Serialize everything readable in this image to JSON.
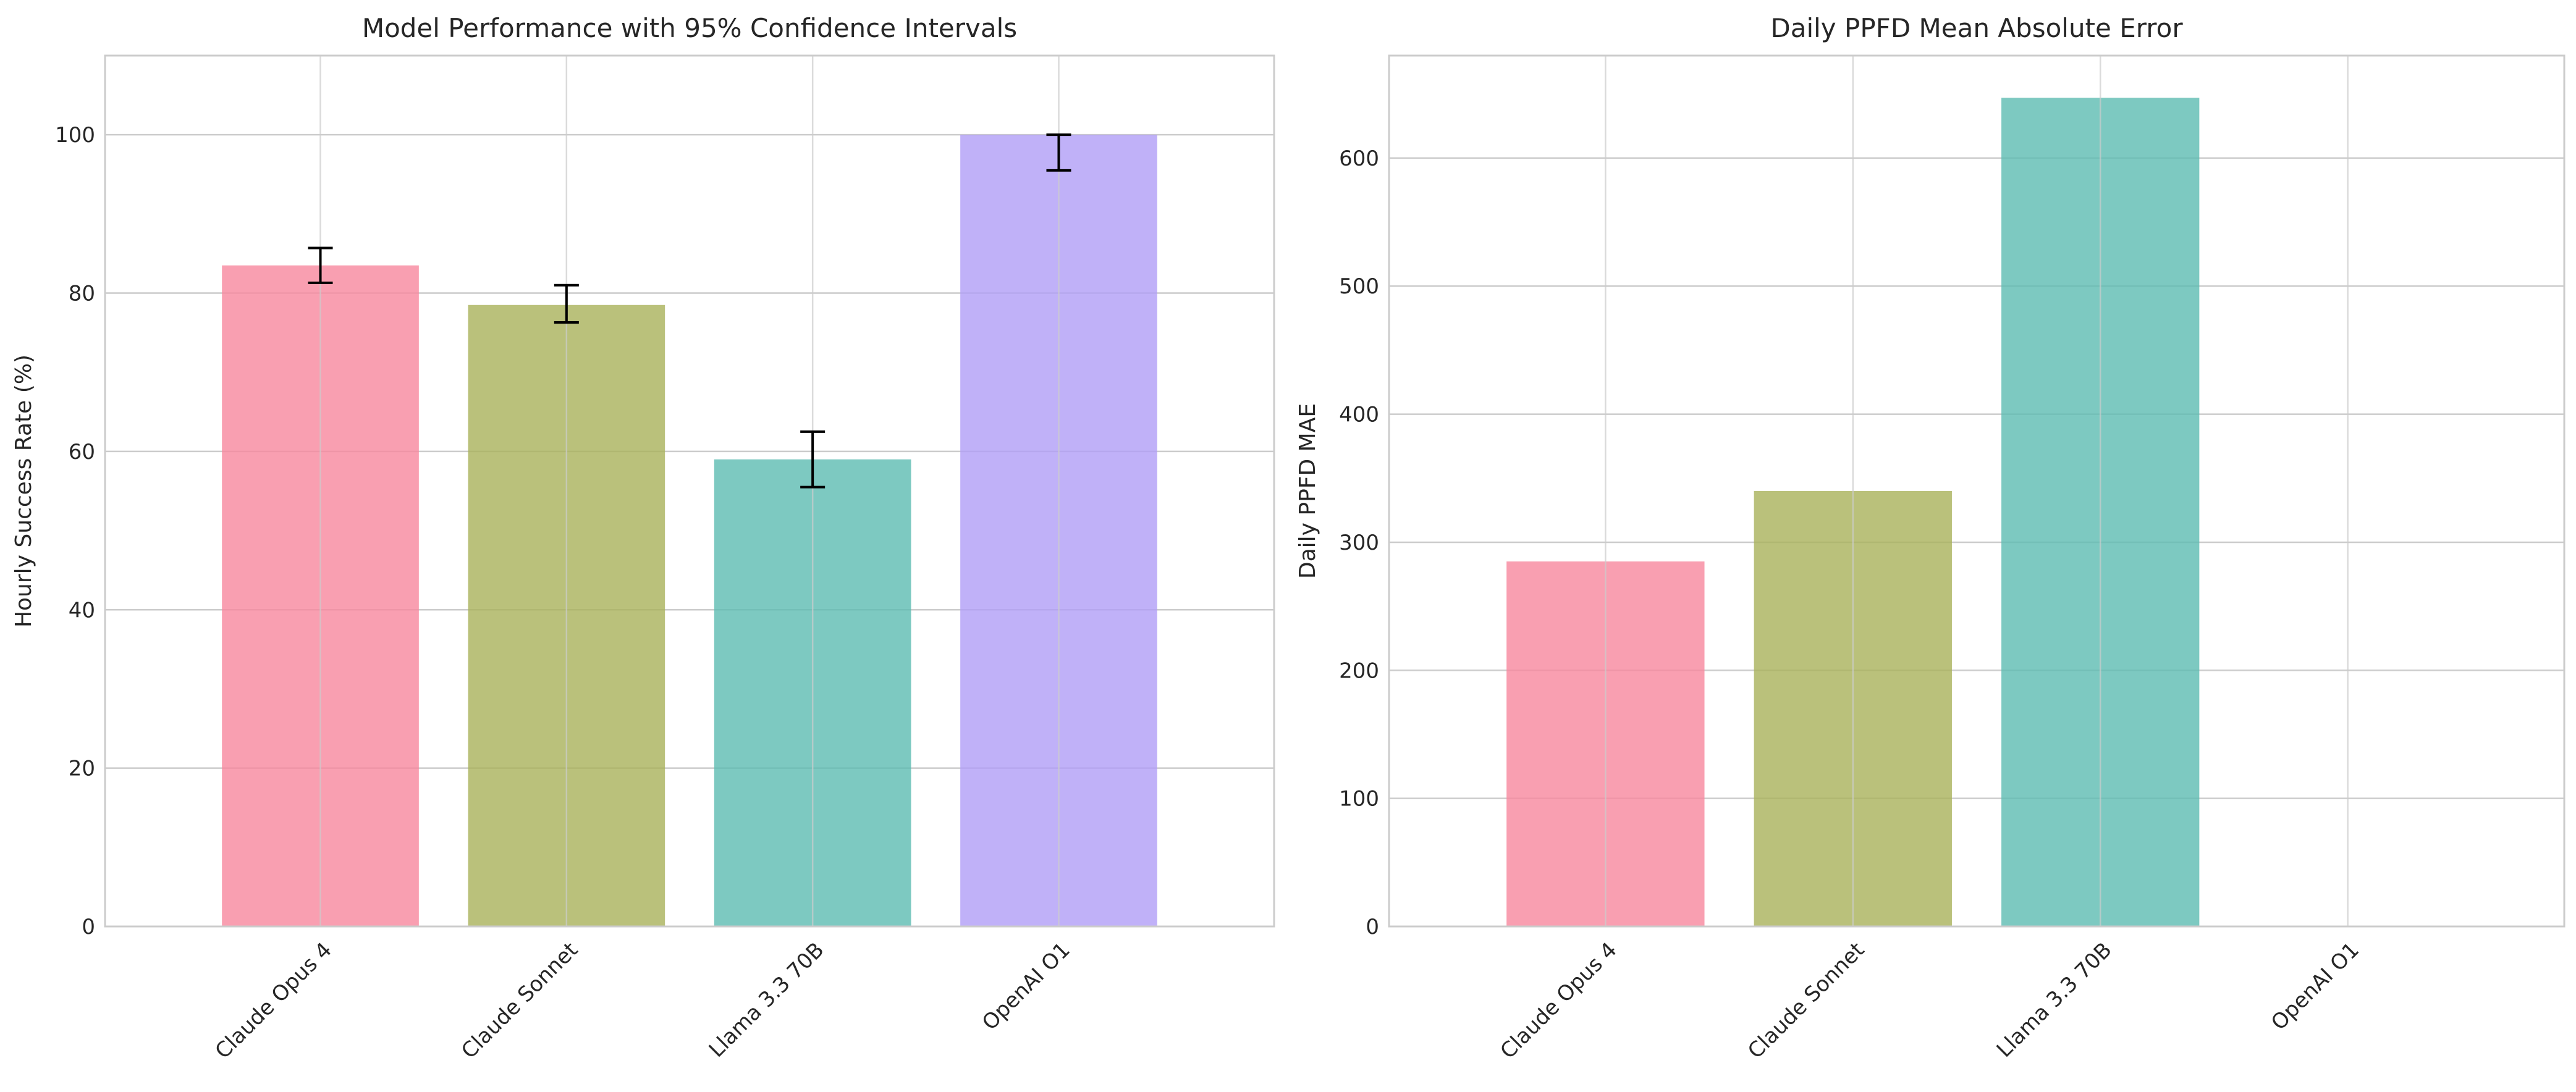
{
  "chart_data": [
    {
      "type": "bar",
      "title": "Model Performance with 95% Confidence Intervals",
      "xlabel": "",
      "ylabel": "Hourly Success Rate (%)",
      "categories": [
        "Claude Opus 4",
        "Claude Sonnet",
        "Llama 3.3 70B",
        "OpenAI O1"
      ],
      "values": [
        83.5,
        78.5,
        59.0,
        100.0
      ],
      "error_bars": [
        {
          "low": 81.3,
          "high": 85.7
        },
        {
          "low": 76.3,
          "high": 81.0
        },
        {
          "low": 55.5,
          "high": 62.5
        },
        {
          "low": 95.5,
          "high": 100.0
        }
      ],
      "colors": [
        "#f7879d",
        "#a9b25a",
        "#5cbbb2",
        "#b09ef6"
      ],
      "ylim": [
        0,
        110
      ],
      "yticks": [
        0,
        20,
        40,
        60,
        80,
        100
      ],
      "grid": true,
      "legend": "none"
    },
    {
      "type": "bar",
      "title": "Daily PPFD Mean Absolute Error",
      "xlabel": "",
      "ylabel": "Daily PPFD MAE",
      "categories": [
        "Claude Opus 4",
        "Claude Sonnet",
        "Llama 3.3 70B",
        "OpenAI O1"
      ],
      "values": [
        285,
        340,
        647,
        null
      ],
      "colors": [
        "#f7879d",
        "#a9b25a",
        "#5cbbb2",
        "#b09ef6"
      ],
      "ylim": [
        0,
        680
      ],
      "yticks": [
        0,
        100,
        200,
        300,
        400,
        500,
        600
      ],
      "grid": true,
      "legend": "none"
    }
  ]
}
